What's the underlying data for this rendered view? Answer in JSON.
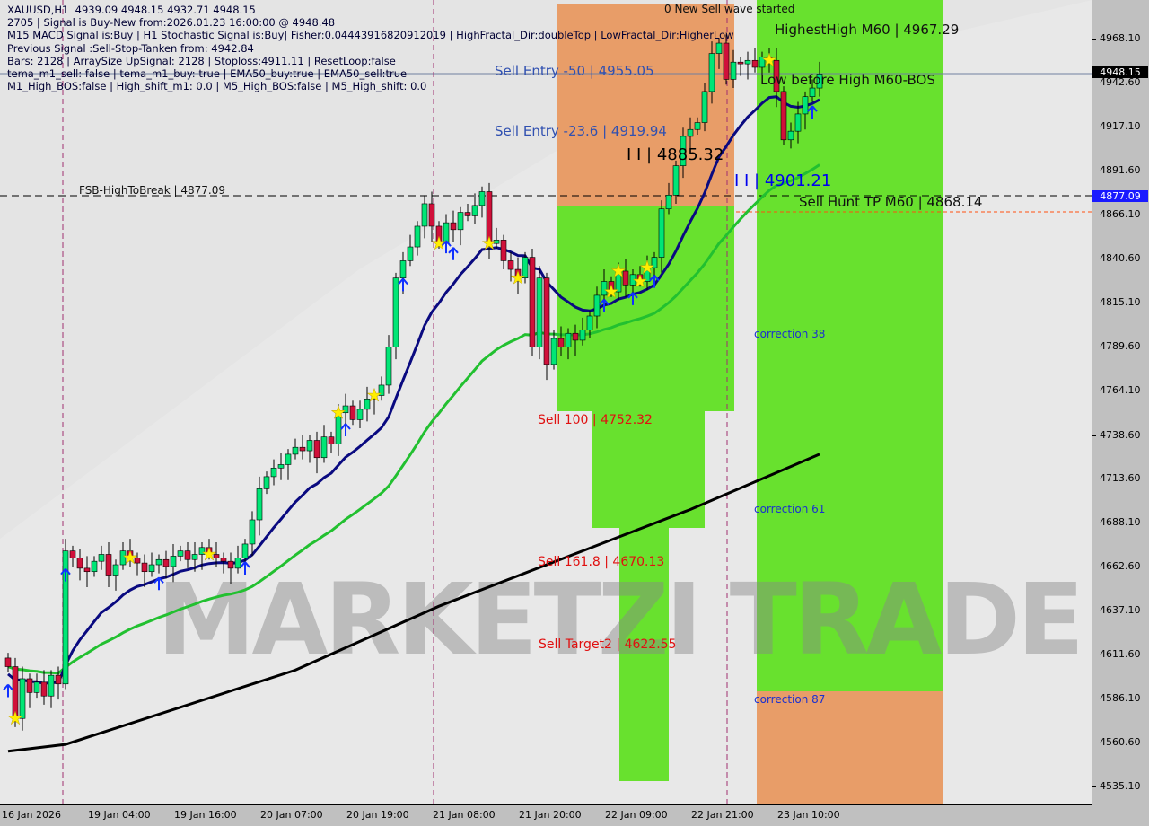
{
  "chart_data": {
    "type": "candlestick",
    "symbol_line": "XAUUSD,H1  4939.09 4948.15 4932.71 4948.15",
    "info_lines": [
      "2705 | Signal is Buy-New from:2026.01.23 16:00:00 @ 4948.48",
      "M15 MACD Signal is:Buy | H1 Stochastic Signal is:Buy| Fisher:0.04443916820912019 | HighFractal_Dir:doubleTop | LowFractal_Dir:HigherLow",
      "Previous Signal :Sell-Stop-Tanken from: 4942.84",
      "Bars: 2128 | ArraySize UpSignal: 2128 | Stoploss:4911.11 | ResetLoop:false",
      "tema_m1_sell: false | tema_m1_buy: true | EMA50_buy:true | EMA50_sell:true",
      "M1_High_BOS:false | High_shift_m1: 0.0 | M5_High_BOS:false | M5_High_shift: 0.0"
    ],
    "ylim": [
      4535.1,
      4968.1
    ],
    "y_ticks": [
      "4968.10",
      "4942.60",
      "4917.10",
      "4891.60",
      "4866.10",
      "4840.60",
      "4815.10",
      "4789.60",
      "4764.10",
      "4738.60",
      "4713.60",
      "4688.10",
      "4662.60",
      "4637.10",
      "4611.60",
      "4586.10",
      "4560.60",
      "4535.10"
    ],
    "x_ticks": [
      "16 Jan 2026",
      "19 Jan 04:00",
      "19 Jan 16:00",
      "20 Jan 07:00",
      "20 Jan 19:00",
      "21 Jan 08:00",
      "21 Jan 20:00",
      "22 Jan 09:00",
      "22 Jan 21:00",
      "23 Jan 10:00"
    ],
    "current_price": "4948.15",
    "level_badge": "4877.09",
    "closes": [
      4605,
      4575,
      4598,
      4590,
      4596,
      4588,
      4600,
      4595,
      4672,
      4668,
      4662,
      4660,
      4666,
      4670,
      4658,
      4664,
      4672,
      4668,
      4665,
      4660,
      4664,
      4667,
      4663,
      4669,
      4672,
      4667,
      4670,
      4674,
      4670,
      4668,
      4666,
      4662,
      4668,
      4676,
      4690,
      4708,
      4715,
      4720,
      4722,
      4728,
      4732,
      4730,
      4736,
      4726,
      4738,
      4734,
      4752,
      4756,
      4748,
      4754,
      4760,
      4762,
      4768,
      4790,
      4830,
      4840,
      4848,
      4860,
      4873,
      4860,
      4850,
      4862,
      4858,
      4868,
      4866,
      4872,
      4880,
      4850,
      4852,
      4840,
      4835,
      4830,
      4842,
      4790,
      4830,
      4780,
      4795,
      4790,
      4798,
      4794,
      4800,
      4808,
      4820,
      4828,
      4822,
      4834,
      4826,
      4832,
      4828,
      4836,
      4842,
      4870,
      4878,
      4895,
      4912,
      4916,
      4920,
      4938,
      4960,
      4966,
      4945,
      4955,
      4954,
      4956,
      4952,
      4958,
      4956,
      4938,
      4910,
      4915,
      4925,
      4935,
      4940,
      4948.15
    ],
    "slow_ma": [
      [
        0,
        4556
      ],
      [
        8,
        4560
      ],
      [
        40,
        4603
      ],
      [
        60,
        4640
      ],
      [
        80,
        4672
      ],
      [
        95,
        4696
      ],
      [
        113,
        4728
      ]
    ],
    "buy_arrows": [
      0,
      8,
      21,
      33,
      47,
      55,
      61,
      62,
      83,
      87,
      90,
      112
    ],
    "stars": [
      1,
      17,
      28,
      46,
      51,
      60,
      67,
      71,
      84,
      85,
      88,
      89,
      106
    ],
    "annotations": {
      "new_sell_wave": "0 New Sell wave started",
      "highest_high": "HighestHigh    M60 | 4967.29",
      "low_before_high": "Low before High    M60-BOS",
      "sell_entry_50": "Sell Entry -50 | 4955.05",
      "sell_entry_236": "Sell Entry -23.6 | 4919.94",
      "level_a": "I I | 4885.32",
      "level_b": "I I | 4901.21",
      "fsb": "FSB-HighToBreak | 4877.09",
      "sell_hunt_tp": "Sell Hunt TP M60 | 4868.14",
      "sell_100": "Sell 100 | 4752.32",
      "sell_1618": "Sell 161.8 | 4670.13",
      "sell_target2": "Sell Target2 | 4622.55",
      "correction_38": "correction 38",
      "correction_61": "correction 61",
      "correction_87": "correction 87"
    },
    "watermark": "MARKETZI TRADE",
    "colors": {
      "bull": "#00e676",
      "bear": "#d0103a",
      "ema_fast": "#0a0a80",
      "ema_mid": "#22c030",
      "ma_slow": "#000000",
      "zone_green": "#5ae01a",
      "zone_orange": "#e8955a"
    }
  }
}
